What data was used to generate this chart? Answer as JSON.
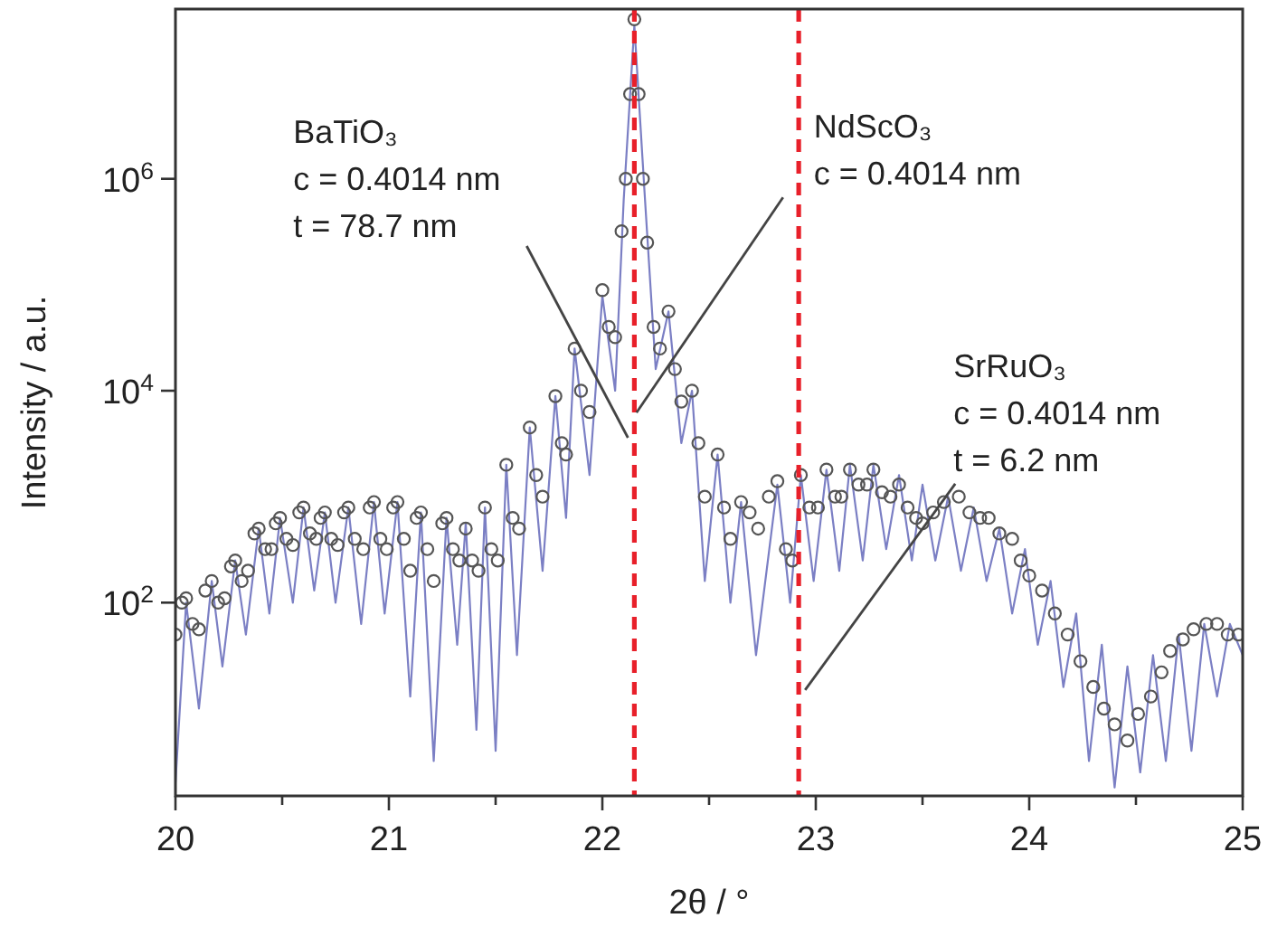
{
  "chart_data": {
    "type": "line",
    "xlabel": "2θ / °",
    "ylabel": "Intensity / a.u.",
    "log": "y",
    "xlim": [
      20,
      25
    ],
    "xticks": [
      20,
      {
        "value": 20.5,
        "label": null
      },
      21,
      {
        "value": 21.5,
        "label": null
      },
      22,
      {
        "value": 22.5,
        "label": null
      },
      23,
      {
        "value": 23.5,
        "label": null
      },
      24,
      {
        "value": 24.5,
        "label": null
      },
      25
    ],
    "ylim": [
      1.5,
      40000000
    ],
    "yticks": [
      {
        "value": 100,
        "label": "10$^{2}$"
      },
      {
        "value": 10000,
        "label": "10$^{4}$"
      },
      {
        "value": 1000000,
        "label": "10$^{6}$"
      }
    ],
    "series": [
      {
        "type": "line",
        "color": "#7b7fc4",
        "marker": "none",
        "line_style": "solid",
        "x": [
          20.0,
          20.05,
          20.11,
          20.17,
          20.22,
          20.28,
          20.33,
          20.39,
          20.44,
          20.49,
          20.55,
          20.6,
          20.65,
          20.7,
          20.75,
          20.81,
          20.87,
          20.93,
          20.98,
          21.04,
          21.1,
          21.15,
          21.21,
          21.27,
          21.32,
          21.36,
          21.41,
          21.45,
          21.5,
          21.55,
          21.6,
          21.66,
          21.72,
          21.78,
          21.83,
          21.87,
          21.94,
          22.0,
          22.06,
          22.1,
          22.15,
          22.2,
          22.25,
          22.31,
          22.37,
          22.42,
          22.48,
          22.54,
          22.6,
          22.65,
          22.72,
          22.82,
          22.88,
          22.93,
          22.99,
          23.05,
          23.11,
          23.16,
          23.22,
          23.27,
          23.33,
          23.39,
          23.45,
          23.5,
          23.56,
          23.62,
          23.68,
          23.74,
          23.8,
          23.86,
          23.92,
          23.98,
          24.04,
          24.1,
          24.16,
          24.22,
          24.28,
          24.34,
          24.4,
          24.46,
          24.52,
          24.58,
          24.64,
          24.7,
          24.76,
          24.82,
          24.88,
          24.94,
          25.0
        ],
        "values": [
          2.0,
          100,
          10,
          160,
          25,
          250,
          50,
          500,
          79,
          630,
          100,
          790,
          130,
          710,
          100,
          790,
          63,
          890,
          79,
          890,
          13,
          710,
          3.2,
          630,
          40,
          560,
          6.3,
          790,
          4.0,
          2000,
          32,
          4500,
          200,
          8900,
          630,
          25000,
          1600,
          79000,
          10000,
          630000,
          28000000,
          630000,
          16000,
          56000,
          3200,
          10000,
          160,
          2500,
          100,
          890,
          32,
          1300,
          100,
          1600,
          160,
          1800,
          200,
          2000,
          250,
          2000,
          320,
          1600,
          250,
          1300,
          250,
          1000,
          200,
          790,
          160,
          500,
          79,
          320,
          40,
          160,
          16,
          79,
          3.2,
          40,
          1.8,
          25,
          2.5,
          32,
          3.2,
          50,
          4.0,
          63,
          13,
          63,
          32
        ]
      },
      {
        "type": "scatter",
        "color": "#555555",
        "marker": "circle",
        "x": [
          20.0,
          20.03,
          20.05,
          20.08,
          20.11,
          20.14,
          20.17,
          20.2,
          20.23,
          20.26,
          20.28,
          20.31,
          20.34,
          20.37,
          20.39,
          20.42,
          20.45,
          20.47,
          20.49,
          20.52,
          20.55,
          20.58,
          20.6,
          20.63,
          20.66,
          20.68,
          20.7,
          20.73,
          20.76,
          20.79,
          20.81,
          20.84,
          20.88,
          20.91,
          20.93,
          20.96,
          20.99,
          21.02,
          21.04,
          21.07,
          21.1,
          21.13,
          21.15,
          21.18,
          21.21,
          21.25,
          21.27,
          21.3,
          21.33,
          21.36,
          21.39,
          21.42,
          21.45,
          21.48,
          21.51,
          21.55,
          21.58,
          21.61,
          21.66,
          21.69,
          21.72,
          21.78,
          21.81,
          21.83,
          21.87,
          21.9,
          21.94,
          22.0,
          22.03,
          22.06,
          22.09,
          22.11,
          22.13,
          22.15,
          22.17,
          22.19,
          22.21,
          22.24,
          22.27,
          22.31,
          22.34,
          22.37,
          22.42,
          22.45,
          22.48,
          22.54,
          22.57,
          22.6,
          22.65,
          22.69,
          22.73,
          22.78,
          22.82,
          22.86,
          22.89,
          22.93,
          22.97,
          23.01,
          23.05,
          23.09,
          23.12,
          23.16,
          23.2,
          23.24,
          23.27,
          23.31,
          23.35,
          23.39,
          23.43,
          23.47,
          23.5,
          23.55,
          23.6,
          23.67,
          23.72,
          23.77,
          23.81,
          23.86,
          23.92,
          23.96,
          24.0,
          24.06,
          24.12,
          24.18,
          24.24,
          24.3,
          24.35,
          24.4,
          24.46,
          24.51,
          24.57,
          24.62,
          24.66,
          24.72,
          24.77,
          24.83,
          24.88,
          24.93,
          24.98
        ],
        "values": [
          50,
          100,
          110,
          63,
          56,
          130,
          160,
          100,
          110,
          220,
          250,
          160,
          200,
          450,
          500,
          320,
          320,
          560,
          630,
          400,
          350,
          710,
          790,
          450,
          400,
          630,
          710,
          400,
          350,
          710,
          790,
          400,
          320,
          790,
          890,
          400,
          320,
          790,
          890,
          400,
          200,
          630,
          710,
          320,
          160,
          560,
          630,
          320,
          250,
          500,
          250,
          200,
          790,
          320,
          250,
          2000,
          630,
          500,
          4500,
          1600,
          1000,
          8900,
          3200,
          2500,
          25000,
          10000,
          6300,
          89000,
          40000,
          32000,
          320000,
          1000000,
          6300000,
          32000000,
          6300000,
          1000000,
          250000,
          40000,
          25000,
          56000,
          16000,
          7900,
          10000,
          3200,
          1000,
          2500,
          790,
          400,
          890,
          710,
          500,
          1000,
          1400,
          320,
          250,
          1600,
          790,
          790,
          1800,
          1000,
          1000,
          1800,
          1300,
          1300,
          1800,
          1100,
          1000,
          1300,
          790,
          630,
          560,
          710,
          890,
          1000,
          710,
          630,
          630,
          450,
          400,
          250,
          180,
          130,
          79,
          50,
          28,
          16,
          10,
          7.1,
          5.0,
          8.9,
          13,
          22,
          35,
          45,
          56,
          63,
          63,
          50,
          50
        ]
      }
    ],
    "ref_lines": [
      {
        "axis": "x",
        "value": 22.15,
        "color": "#e8202a",
        "line_style": "dashed"
      },
      {
        "axis": "x",
        "value": 22.92,
        "color": "#e8202a",
        "line_style": "dashed"
      }
    ],
    "annotations": [
      {
        "text": "BaTiO₃\nc = 0.4014 nm\nt = 78.7 nm",
        "x": 22.12,
        "y": 3600
      },
      {
        "text": "NdScO₃\nc = 0.4014 nm",
        "x": 22.16,
        "y": 6200
      },
      {
        "text": "SrRuO₃\nc = 0.4014 nm\nt = 6.2 nm",
        "x": 22.95,
        "y": 15
      }
    ]
  }
}
